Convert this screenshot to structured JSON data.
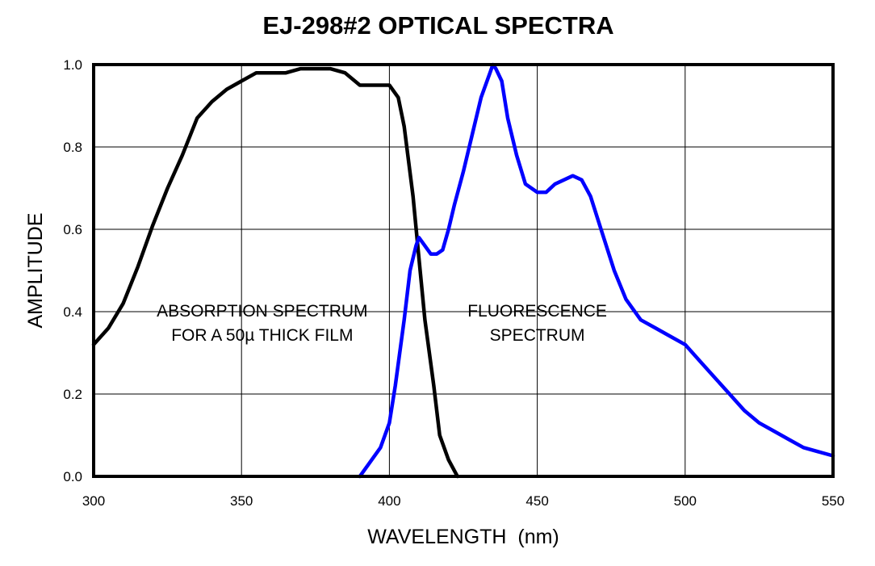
{
  "chart_data": {
    "type": "line",
    "title": "EJ-298#2 OPTICAL SPECTRA",
    "xlabel": "WAVELENGTH  (nm)",
    "ylabel": "AMPLITUDE",
    "xlim": [
      300,
      550
    ],
    "ylim": [
      0,
      1.0
    ],
    "grid": true,
    "x_ticks": [
      300,
      350,
      400,
      450,
      500,
      550
    ],
    "x_tick_labels": [
      "300",
      "350",
      "400",
      "450",
      "500",
      "550"
    ],
    "y_ticks": [
      0,
      0.2,
      0.4,
      0.6,
      0.8,
      1.0
    ],
    "y_tick_labels": [
      "0.0",
      "0.2",
      "0.4",
      "0.6",
      "0.8",
      "1.0"
    ],
    "series": [
      {
        "name": "absorption",
        "color": "#000000",
        "x": [
          300,
          305,
          310,
          315,
          320,
          325,
          330,
          335,
          340,
          345,
          350,
          355,
          357,
          360,
          365,
          370,
          375,
          380,
          385,
          390,
          395,
          400,
          403,
          405,
          408,
          410,
          412,
          415,
          417,
          420,
          423
        ],
        "y": [
          0.32,
          0.36,
          0.42,
          0.51,
          0.61,
          0.7,
          0.78,
          0.87,
          0.91,
          0.94,
          0.96,
          0.98,
          0.98,
          0.98,
          0.98,
          0.99,
          0.99,
          0.99,
          0.98,
          0.95,
          0.95,
          0.95,
          0.92,
          0.85,
          0.68,
          0.53,
          0.38,
          0.22,
          0.1,
          0.04,
          0.0
        ]
      },
      {
        "name": "fluorescence",
        "color": "#0000ff",
        "x": [
          390,
          393,
          397,
          400,
          402,
          405,
          407,
          409,
          410,
          411,
          412,
          414,
          416,
          418,
          420,
          422,
          425,
          428,
          431,
          434,
          435,
          436,
          438,
          440,
          443,
          446,
          450,
          453,
          456,
          459,
          462,
          465,
          468,
          472,
          476,
          480,
          485,
          490,
          495,
          500,
          505,
          510,
          515,
          520,
          525,
          530,
          535,
          540,
          545,
          550
        ],
        "y": [
          0.0,
          0.03,
          0.07,
          0.13,
          0.22,
          0.38,
          0.5,
          0.56,
          0.58,
          0.57,
          0.56,
          0.54,
          0.54,
          0.55,
          0.6,
          0.66,
          0.74,
          0.83,
          0.92,
          0.98,
          1.0,
          0.99,
          0.96,
          0.87,
          0.78,
          0.71,
          0.69,
          0.69,
          0.71,
          0.72,
          0.73,
          0.72,
          0.68,
          0.59,
          0.5,
          0.43,
          0.38,
          0.36,
          0.34,
          0.32,
          0.28,
          0.24,
          0.2,
          0.16,
          0.13,
          0.11,
          0.09,
          0.07,
          0.06,
          0.05
        ]
      }
    ],
    "annotations": [
      {
        "lines": [
          "ABSORPTION SPECTRUM",
          "FOR A 50µ THICK FILM"
        ],
        "x": 357,
        "y": 0.3
      },
      {
        "lines": [
          "FLUORESCENCE",
          "SPECTRUM"
        ],
        "x": 450,
        "y": 0.3
      }
    ]
  }
}
